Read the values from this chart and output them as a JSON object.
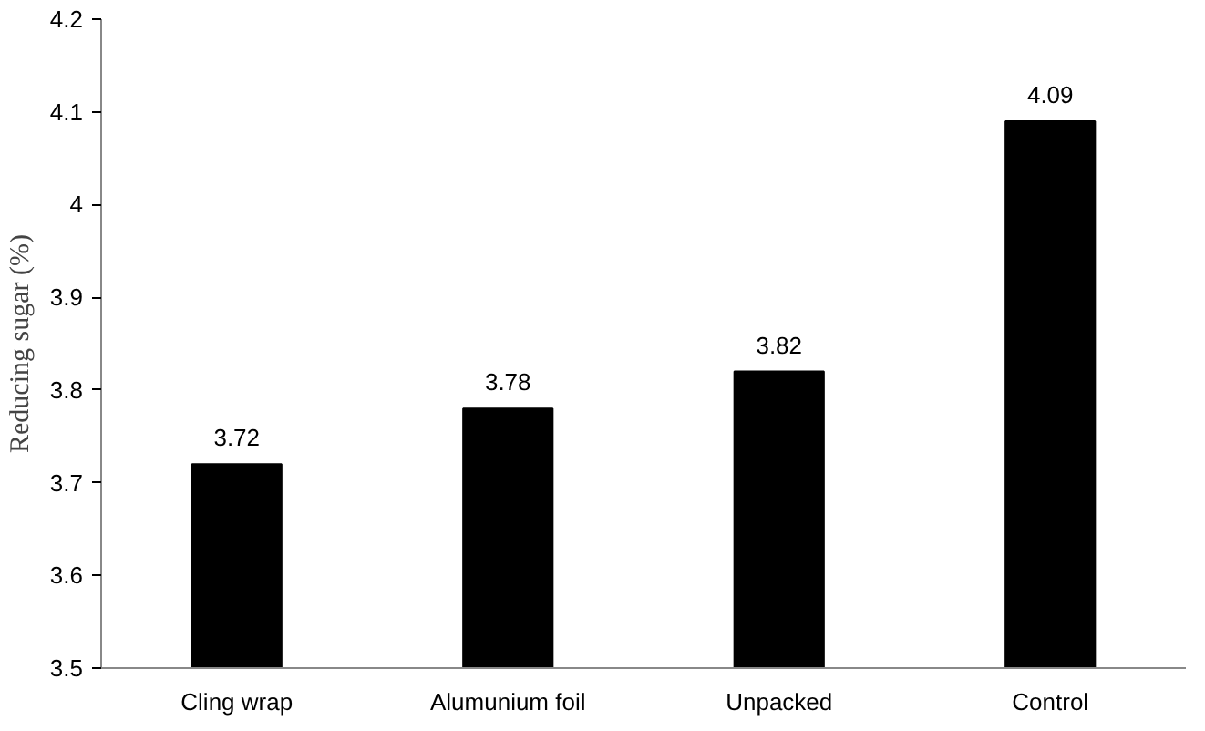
{
  "chart_data": {
    "type": "bar",
    "ylabel": "Reducing sugar (%)",
    "categories": [
      "Cling wrap",
      "Alumunium foil",
      "Unpacked",
      "Control"
    ],
    "values": [
      3.72,
      3.78,
      3.82,
      4.09
    ],
    "color": "#000000",
    "ylim": [
      3.5,
      4.2
    ],
    "yticks": [
      3.5,
      3.6,
      3.7,
      3.8,
      3.9,
      4,
      4.1,
      4.2
    ],
    "grid": false,
    "data_labels": true
  }
}
